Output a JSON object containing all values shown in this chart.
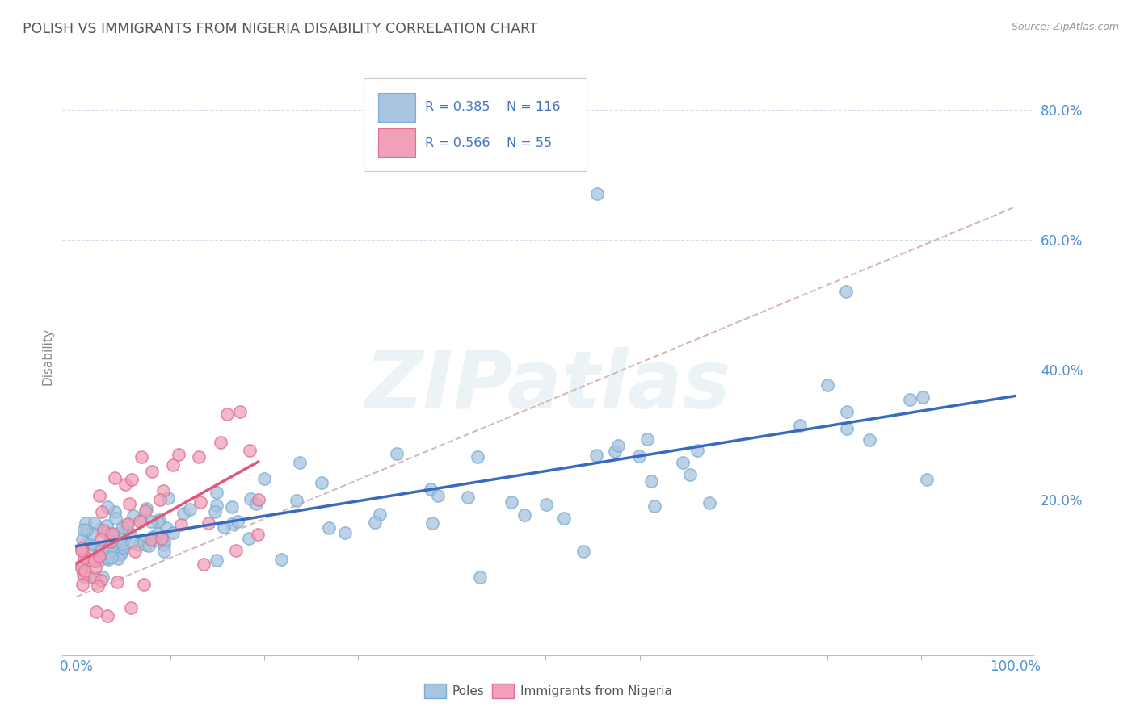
{
  "title": "POLISH VS IMMIGRANTS FROM NIGERIA DISABILITY CORRELATION CHART",
  "source": "Source: ZipAtlas.com",
  "ylabel": "Disability",
  "legend_bottom": [
    "Poles",
    "Immigrants from Nigeria"
  ],
  "poles_R": 0.385,
  "poles_N": 116,
  "nigeria_R": 0.566,
  "nigeria_N": 55,
  "pole_color": "#a8c4e0",
  "nigeria_color": "#f0a0b8",
  "pole_edge_color": "#7aaed0",
  "nigeria_edge_color": "#e07090",
  "pole_line_color": "#3a6abf",
  "nigeria_line_color": "#e05878",
  "trend_dash_color": "#d0b0b8",
  "background_color": "#ffffff",
  "grid_color": "#c8d8e8",
  "ytick_color": "#5090d0",
  "xtick_color": "#5090d0",
  "title_color": "#555555",
  "source_color": "#999999",
  "ylabel_color": "#888888",
  "watermark_text": "ZIPatlas",
  "watermark_color": "#d8e8f0",
  "legend_text_color": "#4472c4"
}
